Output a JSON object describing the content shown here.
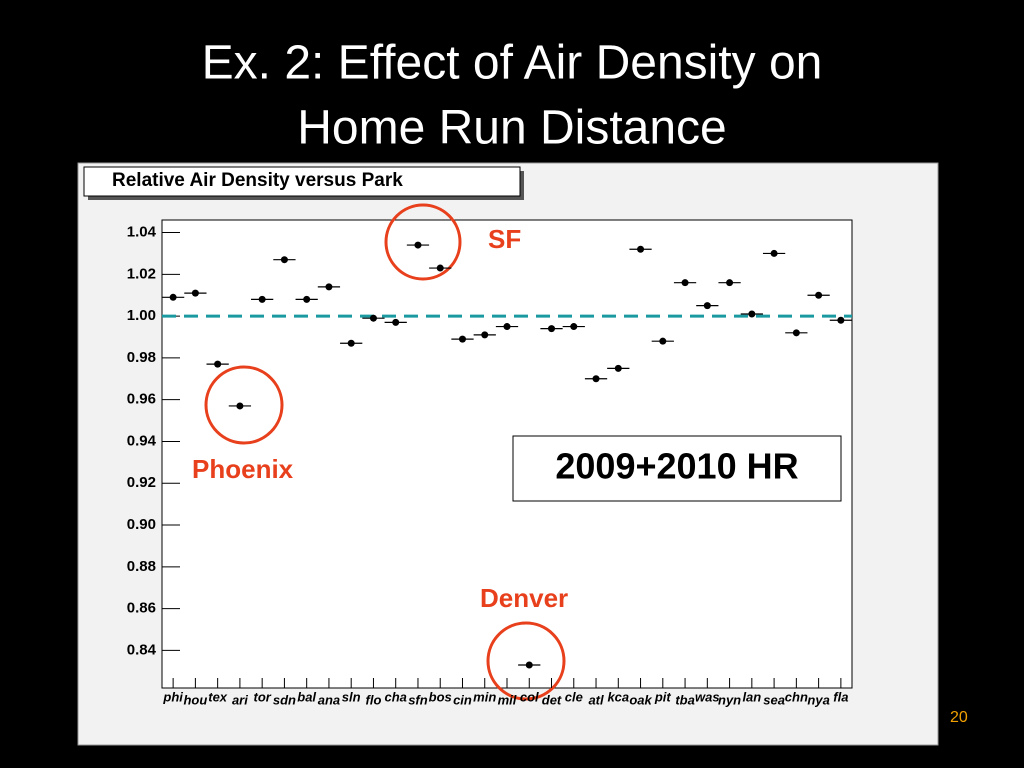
{
  "slide": {
    "title": [
      "Ex. 2:  Effect of Air Density on",
      "Home Run Distance"
    ],
    "page_number": "20"
  },
  "chart_data": {
    "type": "scatter",
    "title": "Relative Air Density versus Park",
    "categories": [
      "phi",
      "hou",
      "tex",
      "ari",
      "tor",
      "sdn",
      "bal",
      "ana",
      "sln",
      "flo",
      "cha",
      "sfn",
      "bos",
      "cin",
      "min",
      "mil",
      "col",
      "det",
      "cle",
      "atl",
      "kca",
      "oak",
      "pit",
      "tba",
      "was",
      "nyn",
      "lan",
      "sea",
      "chn",
      "nya",
      "fla"
    ],
    "values": [
      1.009,
      1.011,
      0.977,
      0.957,
      1.008,
      1.027,
      1.008,
      1.014,
      0.987,
      0.999,
      0.997,
      1.034,
      1.023,
      0.989,
      0.991,
      0.995,
      0.833,
      0.994,
      0.995,
      0.97,
      0.975,
      1.032,
      0.988,
      1.016,
      1.005,
      1.016,
      1.001,
      1.03,
      0.992,
      1.01,
      0.998
    ],
    "color": "#000000",
    "ylim": [
      0.822,
      1.046
    ],
    "yticks": [
      0.84,
      0.86,
      0.88,
      {
        "value": 0.9,
        "label": "0.90"
      },
      0.92,
      0.94,
      0.96,
      0.98,
      {
        "value": 1,
        "label": "1.00"
      },
      1.02,
      1.04
    ],
    "reference_line": {
      "value": 1,
      "color": "#1a9aa0"
    },
    "annotations": [
      "SF",
      "Phoenix",
      "Denver"
    ],
    "legend_text": "2009+2010 HR"
  }
}
